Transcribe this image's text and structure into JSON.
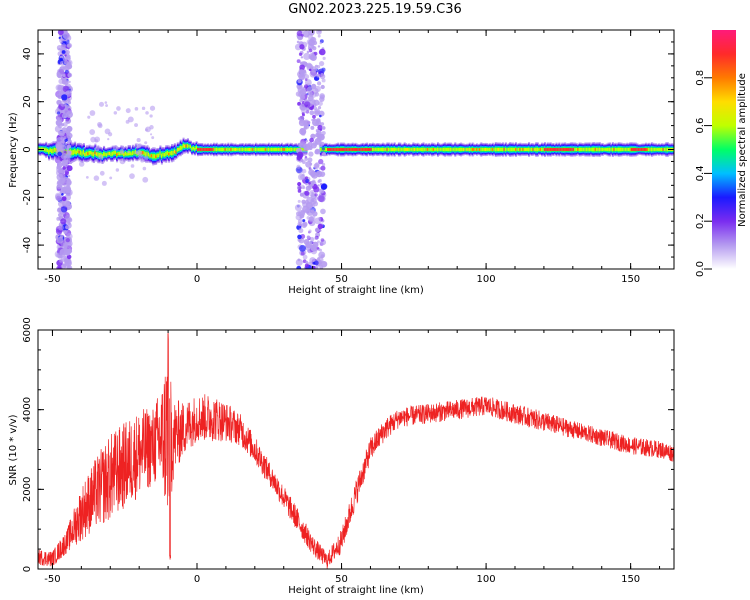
{
  "page": {
    "title": "GN02.2023.225.19.59.C36"
  },
  "colors": {
    "snr_line": "#ee2222",
    "colormap": [
      "#ffffff",
      "#b59bf0",
      "#7a2cf0",
      "#1a1aff",
      "#00bfff",
      "#00ff66",
      "#bfff00",
      "#ffdd00",
      "#ff7a00",
      "#ff2a2a",
      "#ff1a7a"
    ]
  },
  "chart_data": [
    {
      "type": "heatmap",
      "title": "",
      "xlabel": "Height of straight line (km)",
      "ylabel": "Frequency (Hz)",
      "xlim": [
        -55,
        165
      ],
      "ylim": [
        -50,
        50
      ],
      "xticks": [
        -50,
        0,
        50,
        100,
        150
      ],
      "yticks": [
        -40,
        -20,
        0,
        20,
        40
      ],
      "colorbar": {
        "label": "Normalized spectral amplitude",
        "range": [
          0,
          1
        ],
        "ticks": [
          "0.0",
          "0.2",
          "0.4",
          "0.6",
          "0.8"
        ]
      },
      "features": {
        "carrier_frequency_hz": 0,
        "gap_km": [
          38,
          42
        ],
        "broadband_noise_bands_km": [
          [
            -48,
            -44
          ],
          [
            35,
            44
          ]
        ],
        "peak_segments_km": [
          [
            0,
            5
          ],
          [
            45,
            60
          ],
          [
            120,
            130
          ],
          [
            150,
            155
          ]
        ]
      },
      "grid": false,
      "legend": "none"
    },
    {
      "type": "line",
      "title": "",
      "xlabel": "Height of straight line (km)",
      "ylabel": "SNR (10 * v/v)",
      "xlim": [
        -55,
        165
      ],
      "ylim": [
        0,
        6000
      ],
      "xticks": [
        -50,
        0,
        50,
        100,
        150
      ],
      "yticks": [
        0,
        2000,
        4000,
        6000
      ],
      "series": [
        {
          "x": [
            -55,
            -50,
            -45,
            -40,
            -35,
            -30,
            -25,
            -20,
            -15,
            -12,
            -10,
            -8,
            -5,
            0,
            5,
            10,
            15,
            20,
            25,
            30,
            35,
            40,
            45,
            50,
            55,
            60,
            65,
            70,
            80,
            90,
            100,
            110,
            120,
            130,
            140,
            150,
            160,
            165
          ],
          "values": [
            300,
            250,
            700,
            1400,
            1900,
            2300,
            2600,
            2900,
            3100,
            3300,
            3500,
            3300,
            3500,
            3800,
            3800,
            3700,
            3500,
            3000,
            2400,
            1800,
            1200,
            600,
            200,
            700,
            1900,
            3000,
            3500,
            3800,
            3900,
            4000,
            4100,
            3900,
            3700,
            3500,
            3300,
            3100,
            3000,
            2900
          ],
          "noise_amplitude": [
            200,
            200,
            300,
            700,
            900,
            1100,
            1100,
            1100,
            1000,
            1400,
            2400,
            1000,
            700,
            600,
            600,
            500,
            400,
            350,
            300,
            300,
            300,
            250,
            200,
            300,
            350,
            300,
            280,
            250,
            250,
            250,
            250,
            250,
            250,
            220,
            220,
            220,
            220,
            220
          ]
        }
      ],
      "grid": false,
      "legend": "none"
    }
  ]
}
